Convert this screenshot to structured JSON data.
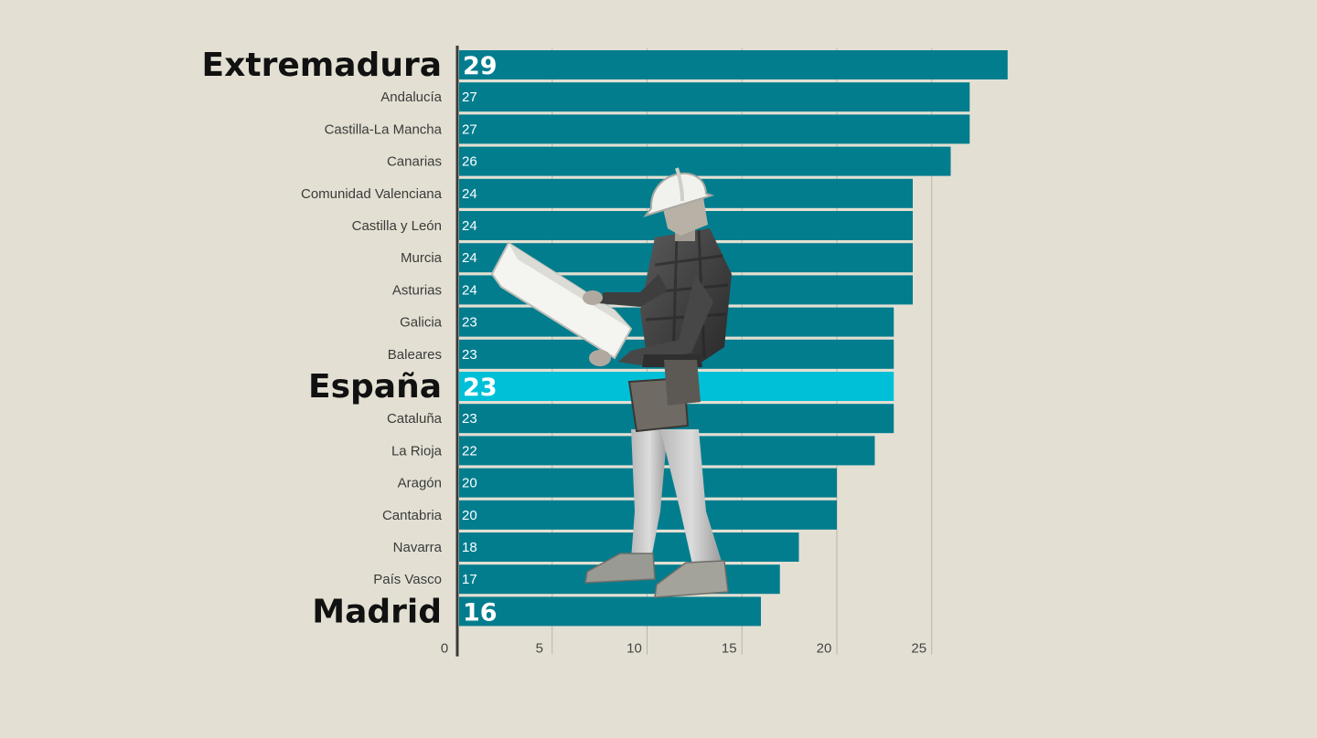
{
  "colors": {
    "background": "#e3e0d3",
    "bar": "#027d8e",
    "bar_highlight": "#00c0d8",
    "axis": "#3a3a3a",
    "grid": "#b9b6ab"
  },
  "chart_data": {
    "type": "bar",
    "orientation": "horizontal",
    "categories": [
      "Extremadura",
      "Andalucía",
      "Castilla-La Mancha",
      "Canarias",
      "Comunidad Valenciana",
      "Castilla y León",
      "Murcia",
      "Asturias",
      "Galicia",
      "Baleares",
      "España",
      "Cataluña",
      "La Rioja",
      "Aragón",
      "Cantabria",
      "Navarra",
      "País Vasco",
      "Madrid"
    ],
    "values": [
      29,
      27,
      27,
      26,
      24,
      24,
      24,
      24,
      23,
      23,
      23,
      23,
      22,
      20,
      20,
      18,
      17,
      16
    ],
    "value_labels": [
      "29",
      "27",
      "27",
      "26",
      "24",
      "24",
      "24",
      "24",
      "23",
      "23",
      "23",
      "23",
      "22",
      "20",
      "20",
      "18",
      "17",
      "16"
    ],
    "emphasized": [
      "Extremadura",
      "España",
      "Madrid"
    ],
    "highlighted": [
      "España"
    ],
    "xticks": [
      0,
      5,
      10,
      15,
      20,
      25
    ],
    "xtick_labels": [
      "0",
      "5",
      "10",
      "15",
      "20",
      "25"
    ],
    "xlim": [
      0,
      28
    ],
    "grid": "vertical",
    "illustration": "construction-worker-photo"
  }
}
